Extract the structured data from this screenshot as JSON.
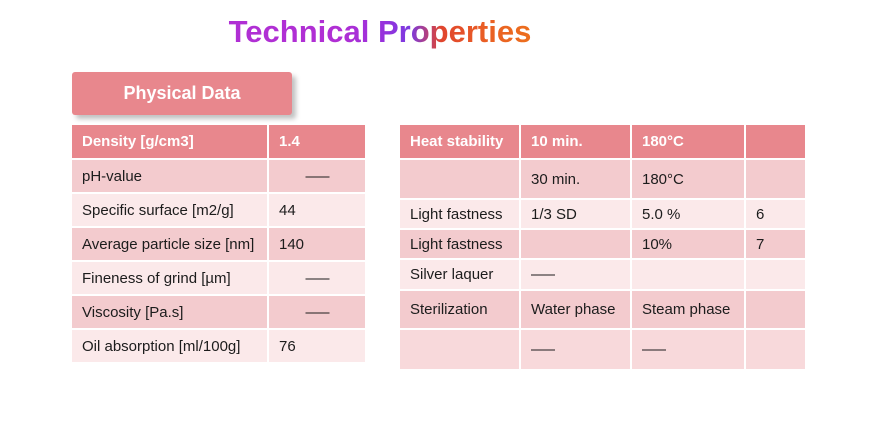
{
  "title": {
    "text": "Technical Properties"
  },
  "banner": {
    "label": "Physical Data"
  },
  "left_table": {
    "rows": [
      {
        "header": true,
        "cells": [
          "Density [g/cm3]",
          "1.4"
        ]
      },
      {
        "header": false,
        "cells": [
          "pH-value",
          "—"
        ]
      },
      {
        "header": false,
        "cells": [
          "Specific surface [m2/g]",
          "44"
        ]
      },
      {
        "header": false,
        "cells": [
          "Average particle size [nm]",
          "140"
        ]
      },
      {
        "header": false,
        "cells": [
          "Fineness of grind [µm]",
          "—"
        ]
      },
      {
        "header": false,
        "cells": [
          "Viscosity [Pa.s]",
          "—"
        ]
      },
      {
        "header": false,
        "cells": [
          "Oil absorption [ml/100g]",
          "76"
        ]
      }
    ]
  },
  "right_table": {
    "rows": [
      {
        "header": true,
        "cells": [
          "Heat stability",
          "10 min.",
          "180°C",
          ""
        ]
      },
      {
        "header": false,
        "cells": [
          "",
          "30 min.",
          "180°C",
          ""
        ]
      },
      {
        "header": false,
        "cells": [
          "Light fastness",
          "1/3 SD",
          "5.0 %",
          "6"
        ]
      },
      {
        "header": false,
        "cells": [
          "Light fastness",
          "",
          "10%",
          "7"
        ]
      },
      {
        "header": false,
        "cells": [
          "Silver laquer",
          "—",
          "",
          ""
        ]
      },
      {
        "header": false,
        "cells": [
          "Sterilization",
          "Water phase",
          "Steam phase",
          ""
        ]
      },
      {
        "header": false,
        "cells": [
          "",
          "—",
          "—",
          ""
        ]
      }
    ]
  },
  "colors": {
    "header_salmon": "#e8878d",
    "band_medium": "#f3cbce",
    "band_light": "#fbe9ea",
    "band_last_right": "#f8d9db",
    "banner": "#e8878d",
    "text_dark": "#1c1c1c",
    "text_light": "#ffffff"
  }
}
